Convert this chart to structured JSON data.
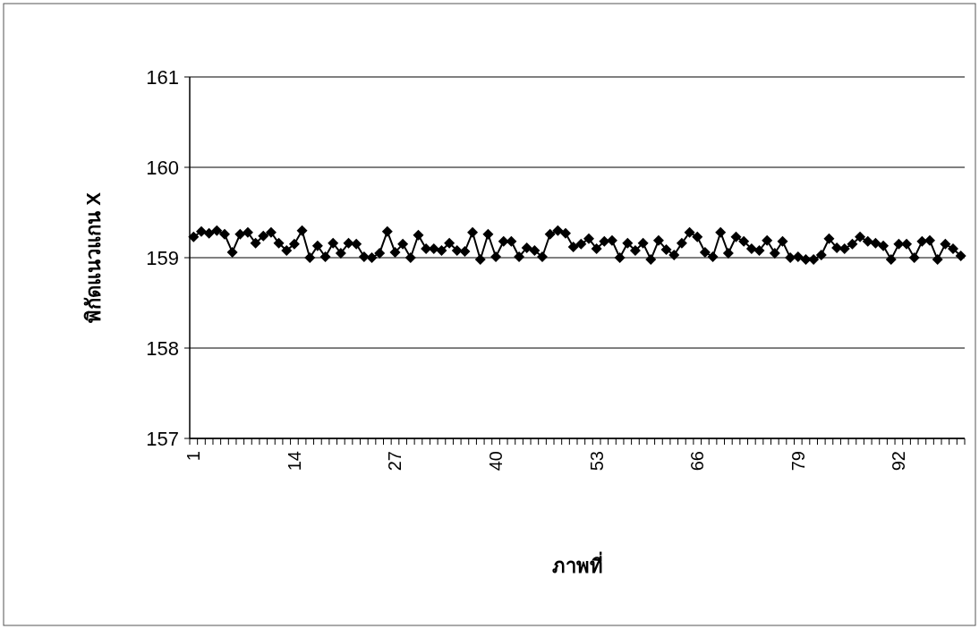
{
  "chart_data": {
    "type": "line",
    "xlabel": "ภาพที่",
    "ylabel": "พิกัดแนวแกน X",
    "categories": [
      "1",
      null,
      null,
      null,
      null,
      null,
      null,
      null,
      null,
      null,
      null,
      null,
      null,
      "14",
      null,
      null,
      null,
      null,
      null,
      null,
      null,
      null,
      null,
      null,
      null,
      null,
      "27",
      null,
      null,
      null,
      null,
      null,
      null,
      null,
      null,
      null,
      null,
      null,
      null,
      "40",
      null,
      null,
      null,
      null,
      null,
      null,
      null,
      null,
      null,
      null,
      null,
      null,
      "53",
      null,
      null,
      null,
      null,
      null,
      null,
      null,
      null,
      null,
      null,
      null,
      null,
      "66",
      null,
      null,
      null,
      null,
      null,
      null,
      null,
      null,
      null,
      null,
      null,
      null,
      "79",
      null,
      null,
      null,
      null,
      null,
      null,
      null,
      null,
      null,
      null,
      null,
      null,
      "92",
      null,
      null,
      null,
      null,
      null,
      null,
      null,
      null
    ],
    "series": [
      {
        "color": "#000000",
        "values": [
          159.23,
          159.29,
          159.27,
          159.3,
          159.26,
          159.06,
          159.26,
          159.28,
          159.16,
          159.24,
          159.28,
          159.16,
          159.08,
          159.15,
          159.3,
          159.0,
          159.13,
          159.01,
          159.16,
          159.05,
          159.16,
          159.15,
          159.01,
          159.0,
          159.05,
          159.29,
          159.06,
          159.15,
          159.0,
          159.25,
          159.1,
          159.1,
          159.08,
          159.16,
          159.08,
          159.07,
          159.28,
          158.98,
          159.26,
          159.01,
          159.18,
          159.18,
          159.01,
          159.11,
          159.08,
          159.01,
          159.26,
          159.3,
          159.27,
          159.12,
          159.15,
          159.21,
          159.1,
          159.18,
          159.19,
          159.0,
          159.16,
          159.08,
          159.16,
          158.98,
          159.19,
          159.09,
          159.03,
          159.16,
          159.28,
          159.23,
          159.06,
          159.01,
          159.28,
          159.05,
          159.23,
          159.18,
          159.1,
          159.08,
          159.19,
          159.05,
          159.18,
          159.0,
          159.01,
          158.98,
          158.98,
          159.03,
          159.21,
          159.11,
          159.1,
          159.15,
          159.23,
          159.18,
          159.16,
          159.13,
          158.98,
          159.15,
          159.15,
          159.0,
          159.18,
          159.19,
          158.98,
          159.15,
          159.1,
          159.02
        ]
      }
    ],
    "ylim": [
      157,
      161
    ],
    "yticks": [
      157,
      158,
      159,
      160,
      161
    ],
    "grid": "y",
    "marker": "diamond",
    "line_style": "solid"
  }
}
